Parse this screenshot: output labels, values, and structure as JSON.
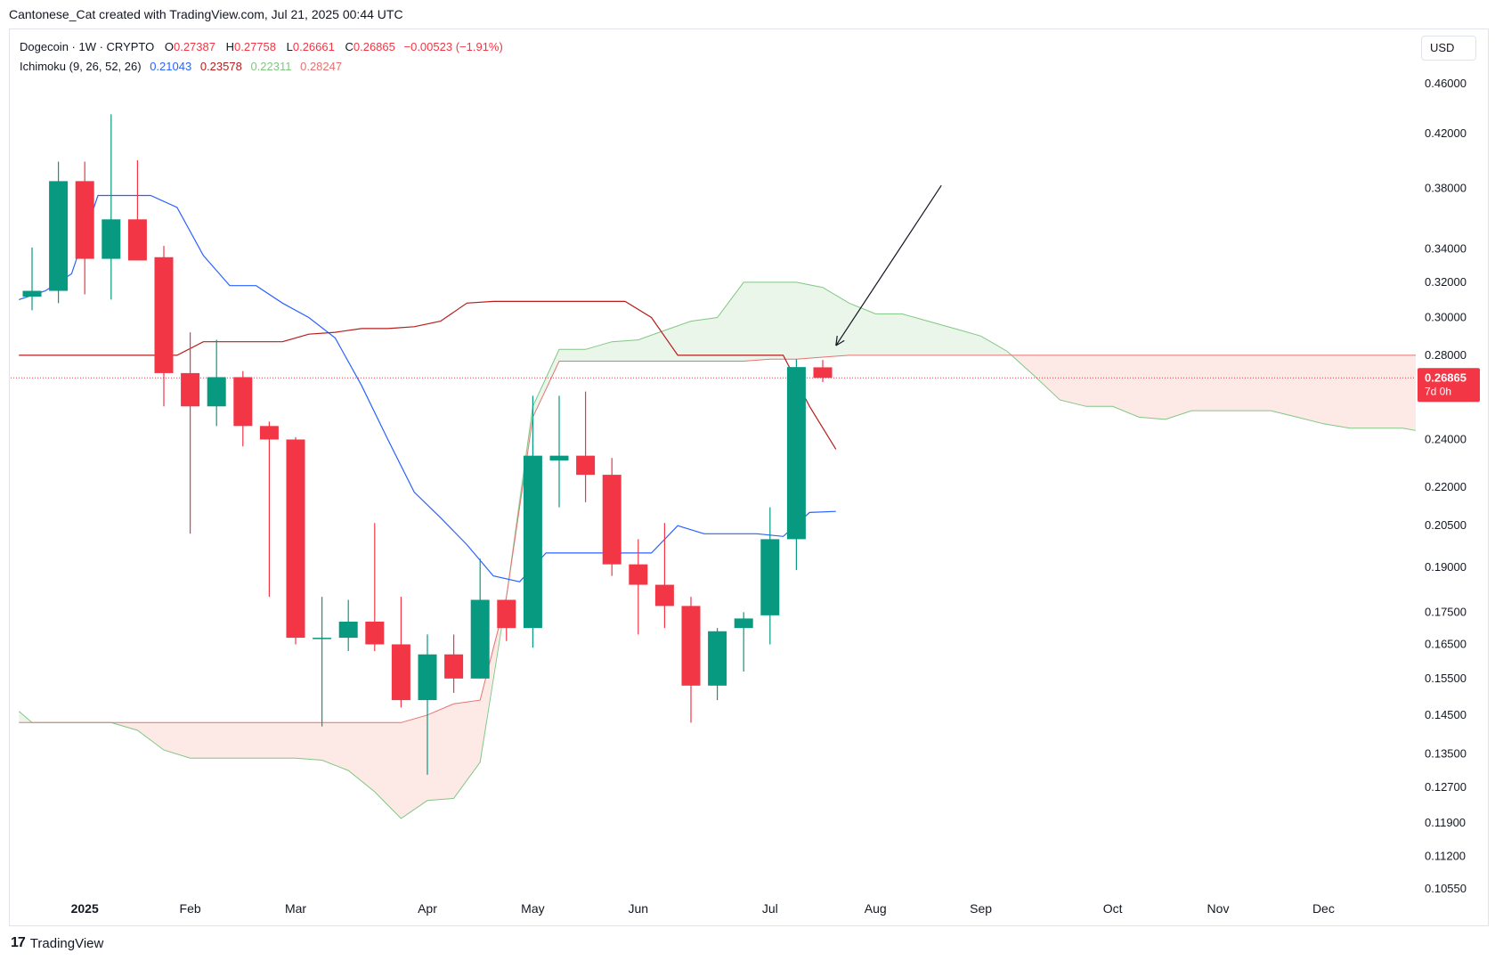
{
  "credit": "Cantonese_Cat created with TradingView.com, Jul 21, 2025 00:44 UTC",
  "legend": {
    "symbol": "Dogecoin · 1W · CRYPTO",
    "o_label": "O",
    "o": "0.27387",
    "h_label": "H",
    "h": "0.27758",
    "l_label": "L",
    "l": "0.26661",
    "c_label": "C",
    "c": "0.26865",
    "change": "−0.00523 (−1.91%)",
    "indicator": "Ichimoku (9, 26, 52, 26)",
    "ind_values": [
      "0.21043",
      "0.23578",
      "0.22311",
      "0.28247"
    ]
  },
  "currency": "USD",
  "brand": "TradingView",
  "colors": {
    "up": "#089981",
    "down": "#f23645",
    "tenkan": "#2962ff",
    "kijun": "#b71c1c",
    "span_a": "#81c784",
    "span_b": "#e57373"
  },
  "chart_data": {
    "type": "candlestick",
    "scale": "log",
    "ylim": [
      0.1055,
      0.48
    ],
    "y_ticks": [
      "0.46000",
      "0.42000",
      "0.38000",
      "0.34000",
      "0.32000",
      "0.30000",
      "0.28000",
      "0.24000",
      "0.22000",
      "0.20500",
      "0.19000",
      "0.17500",
      "0.16500",
      "0.15500",
      "0.14500",
      "0.13500",
      "0.12700",
      "0.11900",
      "0.11200",
      "0.10550"
    ],
    "x_labels": [
      {
        "label": "2025",
        "week": 2,
        "bold": true
      },
      {
        "label": "Feb",
        "week": 6
      },
      {
        "label": "Mar",
        "week": 10
      },
      {
        "label": "Apr",
        "week": 15
      },
      {
        "label": "May",
        "week": 19
      },
      {
        "label": "Jun",
        "week": 23
      },
      {
        "label": "Jul",
        "week": 28
      },
      {
        "label": "Aug",
        "week": 32
      },
      {
        "label": "Sep",
        "week": 36
      },
      {
        "label": "Oct",
        "week": 41
      },
      {
        "label": "Nov",
        "week": 45
      },
      {
        "label": "Dec",
        "week": 49
      }
    ],
    "last_price": {
      "value": "0.26865",
      "countdown": "7d 0h"
    },
    "candles": [
      {
        "w": 0,
        "o": 0.3117,
        "h": 0.341,
        "l": 0.304,
        "c": 0.315
      },
      {
        "w": 1,
        "o": 0.315,
        "h": 0.399,
        "l": 0.308,
        "c": 0.385
      },
      {
        "w": 2,
        "o": 0.385,
        "h": 0.399,
        "l": 0.313,
        "c": 0.334
      },
      {
        "w": 3,
        "o": 0.334,
        "h": 0.435,
        "l": 0.31,
        "c": 0.359
      },
      {
        "w": 4,
        "o": 0.359,
        "h": 0.4,
        "l": 0.333,
        "c": 0.333
      },
      {
        "w": 5,
        "o": 0.335,
        "h": 0.342,
        "l": 0.255,
        "c": 0.271
      },
      {
        "w": 6,
        "o": 0.271,
        "h": 0.292,
        "l": 0.202,
        "c": 0.255
      },
      {
        "w": 7,
        "o": 0.255,
        "h": 0.288,
        "l": 0.246,
        "c": 0.269
      },
      {
        "w": 8,
        "o": 0.269,
        "h": 0.272,
        "l": 0.237,
        "c": 0.246
      },
      {
        "w": 9,
        "o": 0.246,
        "h": 0.248,
        "l": 0.18,
        "c": 0.24
      },
      {
        "w": 10,
        "o": 0.24,
        "h": 0.241,
        "l": 0.165,
        "c": 0.167
      },
      {
        "w": 11,
        "o": 0.167,
        "h": 0.18,
        "l": 0.142,
        "c": 0.167
      },
      {
        "w": 12,
        "o": 0.167,
        "h": 0.179,
        "l": 0.163,
        "c": 0.172
      },
      {
        "w": 13,
        "o": 0.172,
        "h": 0.206,
        "l": 0.163,
        "c": 0.165
      },
      {
        "w": 14,
        "o": 0.165,
        "h": 0.18,
        "l": 0.147,
        "c": 0.149
      },
      {
        "w": 15,
        "o": 0.149,
        "h": 0.168,
        "l": 0.13,
        "c": 0.162
      },
      {
        "w": 16,
        "o": 0.162,
        "h": 0.168,
        "l": 0.151,
        "c": 0.155
      },
      {
        "w": 17,
        "o": 0.155,
        "h": 0.193,
        "l": 0.155,
        "c": 0.179
      },
      {
        "w": 18,
        "o": 0.179,
        "h": 0.179,
        "l": 0.166,
        "c": 0.17
      },
      {
        "w": 19,
        "o": 0.17,
        "h": 0.26,
        "l": 0.164,
        "c": 0.233
      },
      {
        "w": 20,
        "o": 0.231,
        "h": 0.26,
        "l": 0.212,
        "c": 0.233
      },
      {
        "w": 21,
        "o": 0.233,
        "h": 0.262,
        "l": 0.214,
        "c": 0.225
      },
      {
        "w": 22,
        "o": 0.225,
        "h": 0.232,
        "l": 0.187,
        "c": 0.191
      },
      {
        "w": 23,
        "o": 0.191,
        "h": 0.2,
        "l": 0.168,
        "c": 0.184
      },
      {
        "w": 24,
        "o": 0.184,
        "h": 0.206,
        "l": 0.17,
        "c": 0.177
      },
      {
        "w": 25,
        "o": 0.177,
        "h": 0.18,
        "l": 0.143,
        "c": 0.153
      },
      {
        "w": 26,
        "o": 0.153,
        "h": 0.17,
        "l": 0.149,
        "c": 0.169
      },
      {
        "w": 27,
        "o": 0.17,
        "h": 0.175,
        "l": 0.157,
        "c": 0.173
      },
      {
        "w": 28,
        "o": 0.174,
        "h": 0.212,
        "l": 0.165,
        "c": 0.2
      },
      {
        "w": 29,
        "o": 0.2,
        "h": 0.278,
        "l": 0.189,
        "c": 0.274
      },
      {
        "w": 30,
        "o": 0.27387,
        "h": 0.27758,
        "l": 0.26661,
        "c": 0.26865
      }
    ],
    "series": [
      {
        "name": "0.21043",
        "points": [
          [
            -0.5,
            0.31
          ],
          [
            0.5,
            0.315
          ],
          [
            1.5,
            0.325
          ],
          [
            2.5,
            0.375
          ],
          [
            3.5,
            0.375
          ],
          [
            4.5,
            0.375
          ],
          [
            5.5,
            0.367
          ],
          [
            6.5,
            0.336
          ],
          [
            7.5,
            0.318
          ],
          [
            8.5,
            0.318
          ],
          [
            9.5,
            0.308
          ],
          [
            10.5,
            0.3
          ],
          [
            11.5,
            0.289
          ],
          [
            12.5,
            0.265
          ],
          [
            13.5,
            0.24
          ],
          [
            14.5,
            0.218
          ],
          [
            15.5,
            0.208
          ],
          [
            16.5,
            0.198
          ],
          [
            17.5,
            0.187
          ],
          [
            18.5,
            0.185
          ],
          [
            19.5,
            0.195
          ],
          [
            20.5,
            0.195
          ],
          [
            21.5,
            0.195
          ],
          [
            22.5,
            0.195
          ],
          [
            23.5,
            0.195
          ],
          [
            24.5,
            0.205
          ],
          [
            25.5,
            0.202
          ],
          [
            26.5,
            0.202
          ],
          [
            27.5,
            0.202
          ],
          [
            28.5,
            0.201
          ],
          [
            29.5,
            0.21
          ],
          [
            30.5,
            0.21043
          ]
        ]
      },
      {
        "name": "0.23578",
        "points": [
          [
            -0.5,
            0.28
          ],
          [
            4.5,
            0.28
          ],
          [
            5.5,
            0.28
          ],
          [
            6.5,
            0.287
          ],
          [
            7.5,
            0.287
          ],
          [
            8.5,
            0.287
          ],
          [
            9.5,
            0.287
          ],
          [
            10.5,
            0.291
          ],
          [
            11.5,
            0.292
          ],
          [
            12.5,
            0.294
          ],
          [
            13.5,
            0.294
          ],
          [
            14.5,
            0.295
          ],
          [
            15.5,
            0.298
          ],
          [
            16.5,
            0.308
          ],
          [
            17.5,
            0.309
          ],
          [
            18.5,
            0.309
          ],
          [
            19.5,
            0.309
          ],
          [
            20.5,
            0.309
          ],
          [
            21.5,
            0.309
          ],
          [
            22.5,
            0.309
          ],
          [
            23.5,
            0.3
          ],
          [
            24.5,
            0.28
          ],
          [
            25.5,
            0.28
          ],
          [
            26.5,
            0.28
          ],
          [
            27.5,
            0.28
          ],
          [
            28.5,
            0.28
          ],
          [
            29.5,
            0.255
          ],
          [
            30.5,
            0.23578
          ]
        ]
      }
    ],
    "cloud": {
      "span_a": [
        [
          -0.5,
          0.146
        ],
        [
          0.0,
          0.143
        ],
        [
          1.0,
          0.143
        ],
        [
          2.0,
          0.143
        ],
        [
          3.0,
          0.143
        ],
        [
          4.0,
          0.141
        ],
        [
          5.0,
          0.136
        ],
        [
          6.0,
          0.134
        ],
        [
          7.0,
          0.134
        ],
        [
          8.0,
          0.134
        ],
        [
          9.0,
          0.134
        ],
        [
          10.0,
          0.134
        ],
        [
          11.0,
          0.1335
        ],
        [
          12.0,
          0.131
        ],
        [
          13.0,
          0.126
        ],
        [
          14.0,
          0.12
        ],
        [
          15.0,
          0.124
        ],
        [
          16.0,
          0.1245
        ],
        [
          17.0,
          0.133
        ],
        [
          18.0,
          0.18
        ],
        [
          19.0,
          0.255
        ],
        [
          20.0,
          0.283
        ],
        [
          21.0,
          0.283
        ],
        [
          22.0,
          0.287
        ],
        [
          23.0,
          0.288
        ],
        [
          24.0,
          0.293
        ],
        [
          25.0,
          0.298
        ],
        [
          26.0,
          0.3
        ],
        [
          27.0,
          0.32
        ],
        [
          28.0,
          0.32
        ],
        [
          29.0,
          0.32
        ],
        [
          30.0,
          0.317
        ],
        [
          31.0,
          0.308
        ],
        [
          32.0,
          0.302
        ],
        [
          33.0,
          0.302
        ],
        [
          34.0,
          0.298
        ],
        [
          35.0,
          0.294
        ],
        [
          36.0,
          0.29
        ],
        [
          37.0,
          0.282
        ],
        [
          38.0,
          0.27
        ],
        [
          39.0,
          0.258
        ],
        [
          40.0,
          0.255
        ],
        [
          41.0,
          0.255
        ],
        [
          42.0,
          0.25
        ],
        [
          43.0,
          0.249
        ],
        [
          44.0,
          0.253
        ],
        [
          45.0,
          0.253
        ],
        [
          46.0,
          0.253
        ],
        [
          47.0,
          0.253
        ],
        [
          48.0,
          0.25
        ],
        [
          49.0,
          0.247
        ],
        [
          50.0,
          0.245
        ],
        [
          51.0,
          0.245
        ],
        [
          52.0,
          0.245
        ],
        [
          53.0,
          0.244
        ]
      ],
      "span_b": [
        [
          -0.5,
          0.143
        ],
        [
          0.0,
          0.143
        ],
        [
          1.0,
          0.143
        ],
        [
          2.0,
          0.143
        ],
        [
          3.0,
          0.143
        ],
        [
          4.0,
          0.143
        ],
        [
          5.0,
          0.143
        ],
        [
          6.0,
          0.143
        ],
        [
          7.0,
          0.143
        ],
        [
          8.0,
          0.143
        ],
        [
          9.0,
          0.143
        ],
        [
          10.0,
          0.143
        ],
        [
          11.0,
          0.143
        ],
        [
          12.0,
          0.143
        ],
        [
          13.0,
          0.143
        ],
        [
          14.0,
          0.143
        ],
        [
          15.0,
          0.145
        ],
        [
          16.0,
          0.148
        ],
        [
          17.0,
          0.149
        ],
        [
          18.0,
          0.18
        ],
        [
          19.0,
          0.25
        ],
        [
          20.0,
          0.277
        ],
        [
          21.0,
          0.277
        ],
        [
          22.0,
          0.277
        ],
        [
          23.0,
          0.277
        ],
        [
          24.0,
          0.277
        ],
        [
          25.0,
          0.277
        ],
        [
          26.0,
          0.277
        ],
        [
          27.0,
          0.277
        ],
        [
          28.0,
          0.278
        ],
        [
          29.0,
          0.278
        ],
        [
          30.0,
          0.279
        ],
        [
          31.0,
          0.28
        ],
        [
          32.0,
          0.28
        ],
        [
          33.0,
          0.28
        ],
        [
          34.0,
          0.28
        ],
        [
          35.0,
          0.28
        ],
        [
          36.0,
          0.28
        ],
        [
          37.0,
          0.28
        ],
        [
          38.0,
          0.28
        ],
        [
          39.0,
          0.28
        ],
        [
          40.0,
          0.28
        ],
        [
          41.0,
          0.28
        ],
        [
          42.0,
          0.28
        ],
        [
          43.0,
          0.28
        ],
        [
          44.0,
          0.28
        ],
        [
          45.0,
          0.28
        ],
        [
          46.0,
          0.28
        ],
        [
          47.0,
          0.28
        ],
        [
          48.0,
          0.28
        ],
        [
          49.0,
          0.28
        ],
        [
          50.0,
          0.28
        ],
        [
          51.0,
          0.28
        ],
        [
          52.0,
          0.28
        ],
        [
          53.0,
          0.28
        ]
      ]
    },
    "annotation": {
      "type": "arrow",
      "from": [
        34.5,
        0.382
      ],
      "to": [
        30.5,
        0.285
      ]
    }
  }
}
